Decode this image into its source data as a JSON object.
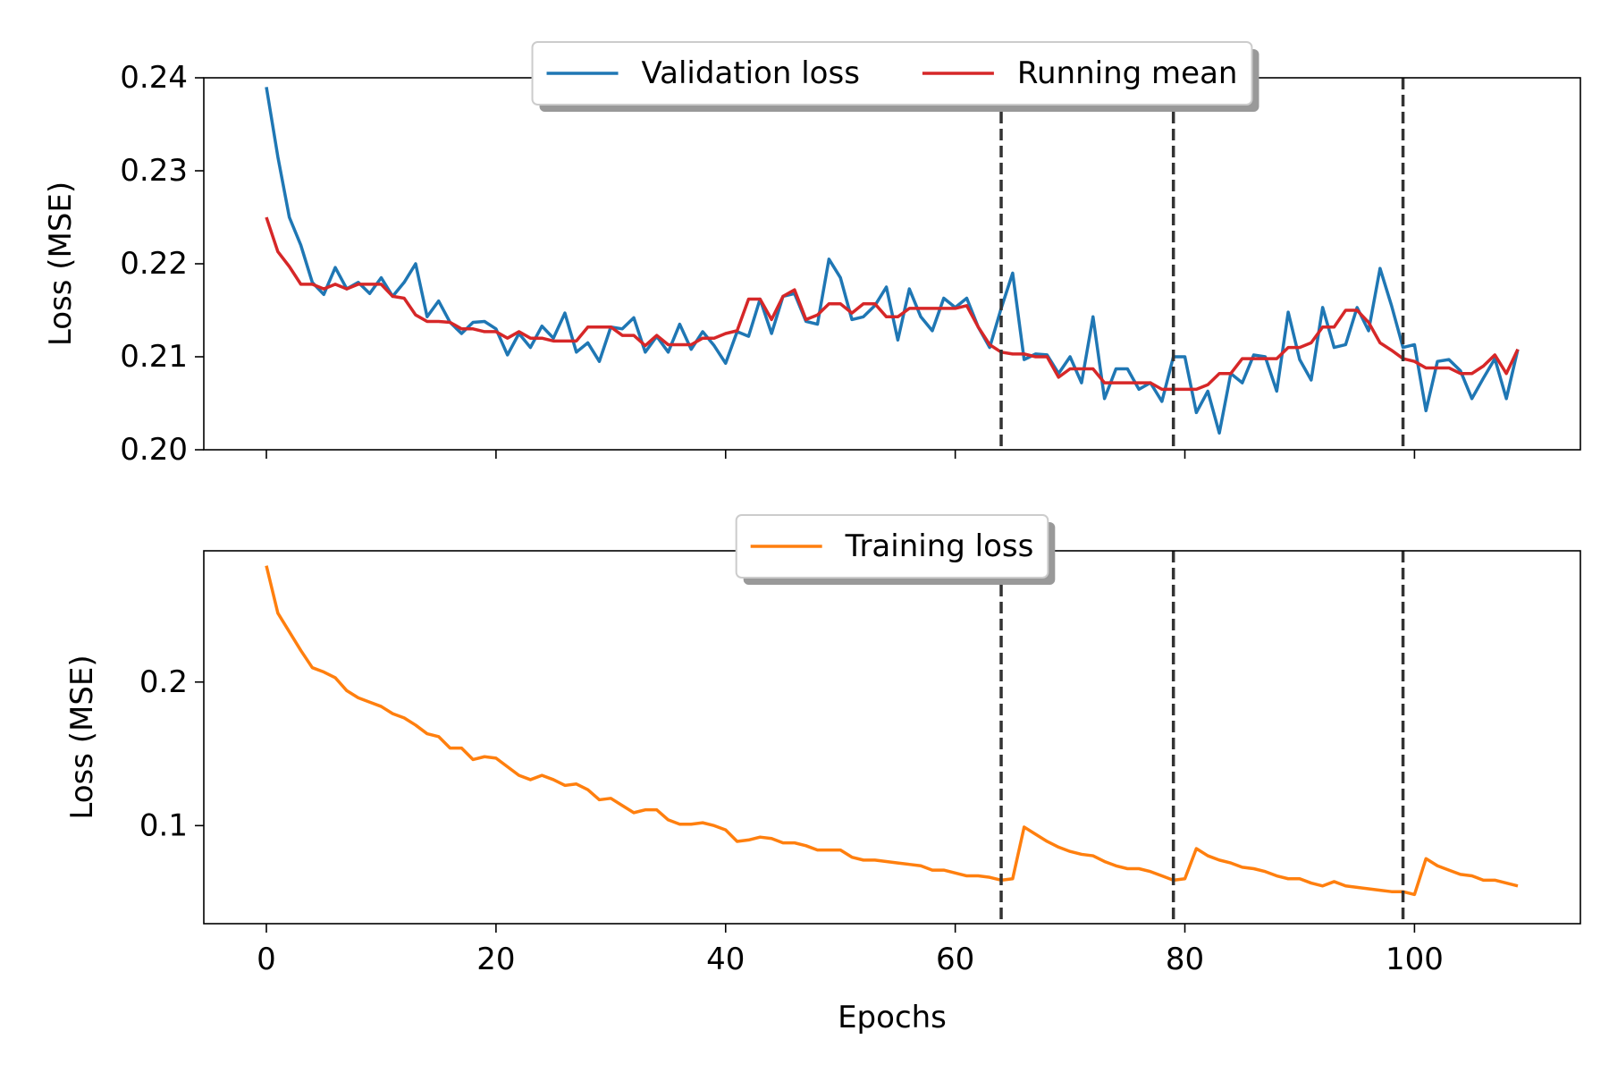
{
  "chart_data": [
    {
      "type": "line",
      "ylabel": "Loss (MSE)",
      "x": [
        0,
        1,
        2,
        3,
        4,
        5,
        6,
        7,
        8,
        9,
        10,
        11,
        12,
        13,
        14,
        15,
        16,
        17,
        18,
        19,
        20,
        21,
        22,
        23,
        24,
        25,
        26,
        27,
        28,
        29,
        30,
        31,
        32,
        33,
        34,
        35,
        36,
        37,
        38,
        39,
        40,
        41,
        42,
        43,
        44,
        45,
        46,
        47,
        48,
        49,
        50,
        51,
        52,
        53,
        54,
        55,
        56,
        57,
        58,
        59,
        60,
        61,
        62,
        63,
        64,
        65,
        66,
        67,
        68,
        69,
        70,
        71,
        72,
        73,
        74,
        75,
        76,
        77,
        78,
        79,
        80,
        81,
        82,
        83,
        84,
        85,
        86,
        87,
        88,
        89,
        90,
        91,
        92,
        93,
        94,
        95,
        96,
        97,
        98,
        99,
        100,
        101,
        102,
        103,
        104,
        105,
        106,
        107,
        108,
        109
      ],
      "series": [
        {
          "name": "Validation loss",
          "color": "#1f77b4",
          "values": [
            0.239,
            0.2315,
            0.225,
            0.222,
            0.218,
            0.2167,
            0.2196,
            0.2173,
            0.218,
            0.2168,
            0.2185,
            0.2165,
            0.218,
            0.22,
            0.2143,
            0.216,
            0.2137,
            0.2125,
            0.2137,
            0.2138,
            0.213,
            0.2102,
            0.2125,
            0.211,
            0.2133,
            0.212,
            0.2147,
            0.2105,
            0.2115,
            0.2095,
            0.2132,
            0.213,
            0.2142,
            0.2105,
            0.2122,
            0.2105,
            0.2135,
            0.2108,
            0.2127,
            0.2112,
            0.2093,
            0.2127,
            0.2122,
            0.2162,
            0.2125,
            0.2165,
            0.2168,
            0.2138,
            0.2135,
            0.2205,
            0.2185,
            0.214,
            0.2143,
            0.2155,
            0.2175,
            0.2118,
            0.2173,
            0.2143,
            0.2128,
            0.2163,
            0.2153,
            0.2163,
            0.2132,
            0.211,
            0.2152,
            0.219,
            0.2097,
            0.2103,
            0.2102,
            0.2082,
            0.21,
            0.2072,
            0.2143,
            0.2055,
            0.2087,
            0.2087,
            0.2065,
            0.2072,
            0.2052,
            0.21,
            0.21,
            0.204,
            0.2063,
            0.2018,
            0.2082,
            0.2072,
            0.2102,
            0.21,
            0.2063,
            0.2148,
            0.2097,
            0.2075,
            0.2153,
            0.211,
            0.2113,
            0.2153,
            0.2128,
            0.2195,
            0.2155,
            0.211,
            0.2113,
            0.2042,
            0.2095,
            0.2097,
            0.2085,
            0.2055,
            0.2077,
            0.2098,
            0.2055,
            0.2108
          ]
        },
        {
          "name": "Running mean",
          "color": "#d62728",
          "values": [
            0.225,
            0.2213,
            0.2197,
            0.2178,
            0.2178,
            0.2173,
            0.2178,
            0.2173,
            0.2178,
            0.2178,
            0.2178,
            0.2165,
            0.2163,
            0.2145,
            0.2138,
            0.2138,
            0.2137,
            0.213,
            0.213,
            0.2127,
            0.2127,
            0.212,
            0.2127,
            0.212,
            0.212,
            0.2117,
            0.2117,
            0.2117,
            0.2132,
            0.2132,
            0.2132,
            0.2123,
            0.2123,
            0.2112,
            0.2123,
            0.2113,
            0.2113,
            0.2113,
            0.212,
            0.212,
            0.2125,
            0.2128,
            0.2162,
            0.2162,
            0.214,
            0.2165,
            0.2172,
            0.214,
            0.2145,
            0.2157,
            0.2157,
            0.2147,
            0.2157,
            0.2157,
            0.2143,
            0.2143,
            0.2152,
            0.2152,
            0.2152,
            0.2152,
            0.2152,
            0.2155,
            0.2132,
            0.2113,
            0.2105,
            0.2103,
            0.2103,
            0.21,
            0.21,
            0.2078,
            0.2087,
            0.2087,
            0.2087,
            0.2072,
            0.2072,
            0.2072,
            0.2072,
            0.2072,
            0.2065,
            0.2065,
            0.2065,
            0.2065,
            0.207,
            0.2082,
            0.2082,
            0.2098,
            0.2098,
            0.2098,
            0.2098,
            0.211,
            0.211,
            0.2115,
            0.2132,
            0.2132,
            0.215,
            0.215,
            0.2137,
            0.2115,
            0.2107,
            0.2098,
            0.2095,
            0.2088,
            0.2088,
            0.2088,
            0.2082,
            0.2082,
            0.209,
            0.2102,
            0.2082,
            0.2108
          ]
        }
      ],
      "xlim": [
        -5.45,
        114.45
      ],
      "ylim": [
        0.2,
        0.24
      ],
      "xticks": [
        0,
        20,
        40,
        60,
        80,
        100
      ],
      "yticks": [
        {
          "value": 0.2,
          "label": "0.20"
        },
        0.21,
        0.22,
        0.23,
        0.24
      ],
      "vlines": [
        64,
        79,
        99
      ],
      "vline_color": "#333333",
      "legend": "upper center"
    },
    {
      "type": "line",
      "ylabel": "Loss (MSE)",
      "xlabel": "Epochs",
      "x": [
        0,
        1,
        2,
        3,
        4,
        5,
        6,
        7,
        8,
        9,
        10,
        11,
        12,
        13,
        14,
        15,
        16,
        17,
        18,
        19,
        20,
        21,
        22,
        23,
        24,
        25,
        26,
        27,
        28,
        29,
        30,
        31,
        32,
        33,
        34,
        35,
        36,
        37,
        38,
        39,
        40,
        41,
        42,
        43,
        44,
        45,
        46,
        47,
        48,
        49,
        50,
        51,
        52,
        53,
        54,
        55,
        56,
        57,
        58,
        59,
        60,
        61,
        62,
        63,
        64,
        65,
        66,
        67,
        68,
        69,
        70,
        71,
        72,
        73,
        74,
        75,
        76,
        77,
        78,
        79,
        80,
        81,
        82,
        83,
        84,
        85,
        86,
        87,
        88,
        89,
        90,
        91,
        92,
        93,
        94,
        95,
        96,
        97,
        98,
        99,
        100,
        101,
        102,
        103,
        104,
        105,
        106,
        107,
        108,
        109
      ],
      "series": [
        {
          "name": "Training loss",
          "color": "#ff7f0e",
          "values": [
            0.281,
            0.248,
            0.235,
            0.222,
            0.21,
            0.207,
            0.203,
            0.194,
            0.189,
            0.186,
            0.183,
            0.178,
            0.175,
            0.17,
            0.164,
            0.162,
            0.154,
            0.154,
            0.146,
            0.148,
            0.147,
            0.141,
            0.135,
            0.132,
            0.135,
            0.132,
            0.128,
            0.129,
            0.125,
            0.118,
            0.119,
            0.114,
            0.109,
            0.111,
            0.111,
            0.104,
            0.101,
            0.101,
            0.102,
            0.1,
            0.097,
            0.089,
            0.09,
            0.092,
            0.091,
            0.088,
            0.088,
            0.086,
            0.083,
            0.083,
            0.083,
            0.078,
            0.076,
            0.076,
            0.075,
            0.074,
            0.073,
            0.072,
            0.069,
            0.069,
            0.067,
            0.065,
            0.065,
            0.064,
            0.062,
            0.063,
            0.099,
            0.094,
            0.089,
            0.085,
            0.082,
            0.08,
            0.079,
            0.075,
            0.072,
            0.07,
            0.07,
            0.068,
            0.065,
            0.062,
            0.063,
            0.084,
            0.079,
            0.076,
            0.074,
            0.071,
            0.07,
            0.068,
            0.065,
            0.063,
            0.063,
            0.06,
            0.058,
            0.061,
            0.058,
            0.057,
            0.056,
            0.055,
            0.054,
            0.054,
            0.052,
            0.077,
            0.072,
            0.069,
            0.066,
            0.065,
            0.062,
            0.062,
            0.06,
            0.058
          ]
        }
      ],
      "xlim": [
        -5.45,
        114.45
      ],
      "ylim": [
        0.0317,
        0.2914
      ],
      "xticks": [
        0,
        20,
        40,
        60,
        80,
        100
      ],
      "yticks": [
        0.1,
        0.2
      ],
      "vlines": [
        64,
        79,
        99
      ],
      "vline_color": "#333333",
      "legend": "upper center"
    }
  ]
}
